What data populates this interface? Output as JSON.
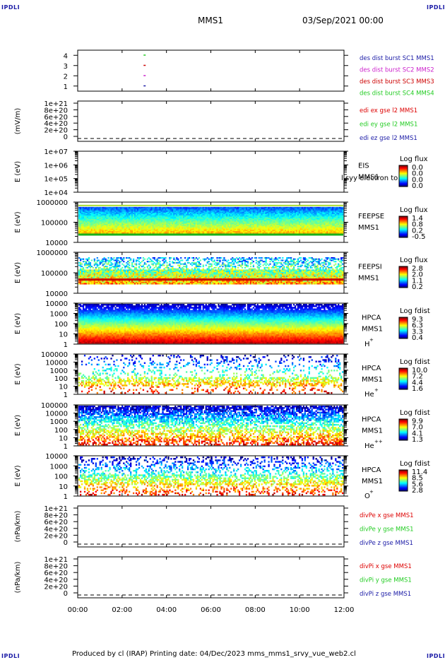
{
  "corners": {
    "tl": "IPDLI",
    "tr": "IPDLI",
    "bl": "IPDLI",
    "br": "IPDLI"
  },
  "header": {
    "spacecraft": "MMS1",
    "date": "03/Sep/2021 00:00"
  },
  "footer": "Produced by cl (IRAP)   Printing date: 04/Dec/2023   mms_mms1_srvy_vue_web2.cl",
  "colors": {
    "mms1": "#1a1aa6",
    "mms2": "#cc22cc",
    "mms3": "#cc0000",
    "mms4": "#22cc22",
    "red": "#dd0000",
    "green": "#22cc22",
    "blue": "#1a1aa6"
  },
  "chart_data": [
    {
      "type": "scatter",
      "id": "burst",
      "yticks": [
        "1",
        "2",
        "3",
        "4"
      ],
      "ylim": [
        0.5,
        4.5
      ],
      "series": [
        {
          "name": "des dist burst SC1 MMS1",
          "color": "#1a1aa6",
          "x": [
            "03:00"
          ],
          "y": [
            1
          ]
        },
        {
          "name": "des dist burst SC2 MMS2",
          "color": "#cc22cc",
          "x": [
            "03:00"
          ],
          "y": [
            2
          ]
        },
        {
          "name": "des dist burst SC3 MMS3",
          "color": "#cc0000",
          "x": [
            "03:00"
          ],
          "y": [
            3
          ]
        },
        {
          "name": "des dist burst SC4 MMS4",
          "color": "#22cc22",
          "x": [
            "03:00"
          ],
          "y": [
            4
          ]
        }
      ]
    },
    {
      "type": "line",
      "id": "edi",
      "ylabel": "(mV/m)",
      "yticks": [
        "1e+21",
        "8e+20",
        "6e+20",
        "4e+20",
        "2e+20",
        "0"
      ],
      "series": [
        {
          "name": "edi ex gse l2 MMS1",
          "color": "#dd0000"
        },
        {
          "name": "edi ey gse l2 MMS1",
          "color": "#22cc22"
        },
        {
          "name": "edi ez gse l2 MMS1",
          "color": "#1a1aa6"
        }
      ]
    },
    {
      "type": "heatmap",
      "id": "eis",
      "ylabel": "E (eV)",
      "yticks": [
        "1e+07",
        "1e+06",
        "1e+05",
        "1e+04"
      ],
      "label": [
        "EIS",
        "MMS1"
      ],
      "overlay": "l syy electron to",
      "cbar_title": "Log flux",
      "cbar_ticks": [
        "0.0",
        "0.0",
        "0.0",
        "0.0"
      ]
    },
    {
      "type": "heatmap",
      "id": "feepse",
      "ylabel": "E (eV)",
      "yticks": [
        "1000000",
        "100000",
        "10000"
      ],
      "label": [
        "FEEPSE",
        "MMS1"
      ],
      "cbar_title": "Log flux",
      "cbar_ticks": [
        "1.4",
        "0.8",
        "0.2",
        "-0.5"
      ]
    },
    {
      "type": "heatmap",
      "id": "feepsi",
      "ylabel": "E (eV)",
      "yticks": [
        "1000000",
        "100000",
        "10000"
      ],
      "label": [
        "FEEPSI",
        "MMS1"
      ],
      "cbar_title": "Log flux",
      "cbar_ticks": [
        "2.8",
        "2.0",
        "1.1",
        "0.2"
      ]
    },
    {
      "type": "heatmap",
      "id": "hpca_h",
      "ylabel": "E (eV)",
      "yticks": [
        "10000",
        "1000",
        "100",
        "10",
        "1"
      ],
      "label": [
        "HPCA",
        "MMS1",
        "H",
        "+"
      ],
      "cbar_title": "Log fdist",
      "cbar_ticks": [
        "9.3",
        "6.3",
        "3.3",
        "0.4"
      ]
    },
    {
      "type": "heatmap",
      "id": "hpca_he",
      "ylabel": "E (eV)",
      "yticks": [
        "100000",
        "10000",
        "1000",
        "100",
        "10",
        "1"
      ],
      "label": [
        "HPCA",
        "MMS1",
        "He",
        "+"
      ],
      "cbar_title": "Log fdist",
      "cbar_ticks": [
        "10.0",
        "7.2",
        "4.4",
        "1.6"
      ]
    },
    {
      "type": "heatmap",
      "id": "hpca_hepp",
      "ylabel": "E (eV)",
      "yticks": [
        "100000",
        "10000",
        "1000",
        "100",
        "10",
        "1"
      ],
      "label": [
        "HPCA",
        "MMS1",
        "He",
        "++"
      ],
      "cbar_title": "Log fdist",
      "cbar_ticks": [
        "9.9",
        "7.0",
        "4.1",
        "1.3"
      ]
    },
    {
      "type": "heatmap",
      "id": "hpca_o",
      "ylabel": "E (eV)",
      "yticks": [
        "10000",
        "1000",
        "100",
        "10",
        "1"
      ],
      "label": [
        "HPCA",
        "MMS1",
        "O",
        "+"
      ],
      "cbar_title": "Log fdist",
      "cbar_ticks": [
        "11.4",
        "8.5",
        "5.6",
        "2.8"
      ]
    },
    {
      "type": "line",
      "id": "divpe",
      "ylabel": "(nPa/km)",
      "yticks": [
        "1e+21",
        "8e+20",
        "6e+20",
        "4e+20",
        "2e+20",
        "0"
      ],
      "series": [
        {
          "name": "divPe x gse MMS1",
          "color": "#dd0000"
        },
        {
          "name": "divPe y gse MMS1",
          "color": "#22cc22"
        },
        {
          "name": "divPe z gse MMS1",
          "color": "#1a1aa6"
        }
      ]
    },
    {
      "type": "line",
      "id": "divpi",
      "ylabel": "(nPa/km)",
      "yticks": [
        "1e+21",
        "8e+20",
        "6e+20",
        "4e+20",
        "2e+20",
        "0"
      ],
      "series": [
        {
          "name": "divPi x gse MMS1",
          "color": "#dd0000"
        },
        {
          "name": "divPi y gse MMS1",
          "color": "#22cc22"
        },
        {
          "name": "divPi z gse MMS1",
          "color": "#1a1aa6"
        }
      ]
    }
  ],
  "xaxis": {
    "ticks": [
      "00:00",
      "02:00",
      "04:00",
      "06:00",
      "08:00",
      "10:00",
      "12:00"
    ]
  }
}
